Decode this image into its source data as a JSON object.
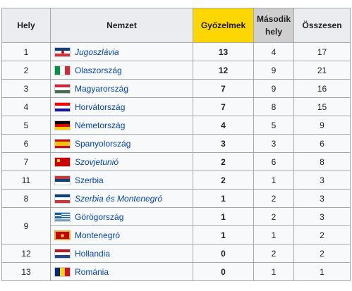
{
  "table": {
    "headers": {
      "rank": "Hely",
      "nation": "Nemzet",
      "wins": "Győzelmek",
      "second": "Második hely",
      "total": "Összesen"
    },
    "rows": [
      {
        "rank": "1",
        "nation": "Jugoszlávia",
        "italic": true,
        "flag": "yugoslavia-flag-icon",
        "wins": "13",
        "second": "4",
        "total": "17"
      },
      {
        "rank": "2",
        "nation": "Olaszország",
        "italic": false,
        "flag": "italy-flag-icon",
        "wins": "12",
        "second": "9",
        "total": "21"
      },
      {
        "rank": "3",
        "nation": "Magyarország",
        "italic": false,
        "flag": "hungary-flag-icon",
        "wins": "7",
        "second": "9",
        "total": "16"
      },
      {
        "rank": "4",
        "nation": "Horvátország",
        "italic": false,
        "flag": "croatia-flag-icon",
        "wins": "7",
        "second": "8",
        "total": "15"
      },
      {
        "rank": "5",
        "nation": "Németország",
        "italic": false,
        "flag": "germany-flag-icon",
        "wins": "4",
        "second": "5",
        "total": "9"
      },
      {
        "rank": "6",
        "nation": "Spanyolország",
        "italic": false,
        "flag": "spain-flag-icon",
        "wins": "3",
        "second": "3",
        "total": "6"
      },
      {
        "rank": "7",
        "nation": "Szovjetunió",
        "italic": true,
        "flag": "soviet-union-flag-icon",
        "wins": "2",
        "second": "6",
        "total": "8"
      },
      {
        "rank": "11",
        "nation": "Szerbia",
        "italic": false,
        "flag": "serbia-flag-icon",
        "wins": "2",
        "second": "1",
        "total": "3"
      },
      {
        "rank": "8",
        "nation": "Szerbia és Montenegró",
        "italic": true,
        "flag": "serbia-montenegro-flag-icon",
        "wins": "1",
        "second": "2",
        "total": "3"
      },
      {
        "rank": "9",
        "nation": "Görögország",
        "italic": false,
        "flag": "greece-flag-icon",
        "wins": "1",
        "second": "2",
        "total": "3"
      },
      {
        "rank": "",
        "nation": "Montenegró",
        "italic": false,
        "flag": "montenegro-flag-icon",
        "wins": "1",
        "second": "1",
        "total": "2"
      },
      {
        "rank": "12",
        "nation": "Hollandia",
        "italic": false,
        "flag": "netherlands-flag-icon",
        "wins": "0",
        "second": "2",
        "total": "2"
      },
      {
        "rank": "13",
        "nation": "Románia",
        "italic": false,
        "flag": "romania-flag-icon",
        "wins": "0",
        "second": "1",
        "total": "1"
      }
    ]
  },
  "colors": {
    "header_bg": "#eaecf0",
    "wins_header_bg": "#ffd700",
    "second_header_bg": "#cfcfcf",
    "cell_bg": "#f8f9fa",
    "border": "#a2a9b1",
    "link": "#0645ad"
  }
}
